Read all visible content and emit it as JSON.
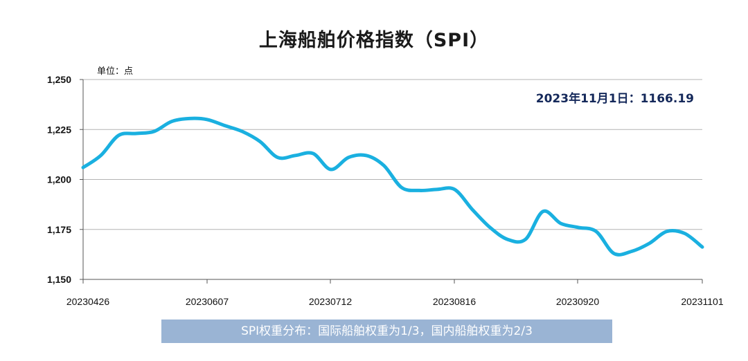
{
  "title": "上海船舶价格指数（SPI）",
  "unit_label": "单位：点",
  "annotation": "2023年11月1日：1166.19",
  "footer_note": "SPI权重分布：国际船舶权重为1/3，国内船舶权重为2/3",
  "colors": {
    "line": "#1ab0e0",
    "grid": "#b3b3b3",
    "axis": "#555555",
    "footer_bg": "#9ab4d4",
    "annotation": "#14285a"
  },
  "chart_data": {
    "type": "line",
    "title": "上海船舶价格指数（SPI）",
    "ylabel": "单位：点",
    "ylim": [
      1150,
      1250
    ],
    "yticks": [
      "1,150",
      "1,175",
      "1,200",
      "1,225",
      "1,250"
    ],
    "ytick_values": [
      1150,
      1175,
      1200,
      1225,
      1250
    ],
    "xticks": [
      "20230426",
      "20230607",
      "20230712",
      "20230816",
      "20230920",
      "20231101"
    ],
    "grid": true,
    "series": [
      {
        "values": [
          1206,
          1212,
          1222,
          1223,
          1224,
          1229,
          1230.5,
          1230,
          1227,
          1224,
          1219,
          1211,
          1212,
          1213,
          1205,
          1211,
          1212,
          1207,
          1196,
          1194.5,
          1195,
          1195,
          1185,
          1176,
          1170,
          1170,
          1184,
          1178,
          1176,
          1174,
          1163,
          1164,
          1168,
          1174,
          1173,
          1166.19
        ]
      }
    ]
  }
}
